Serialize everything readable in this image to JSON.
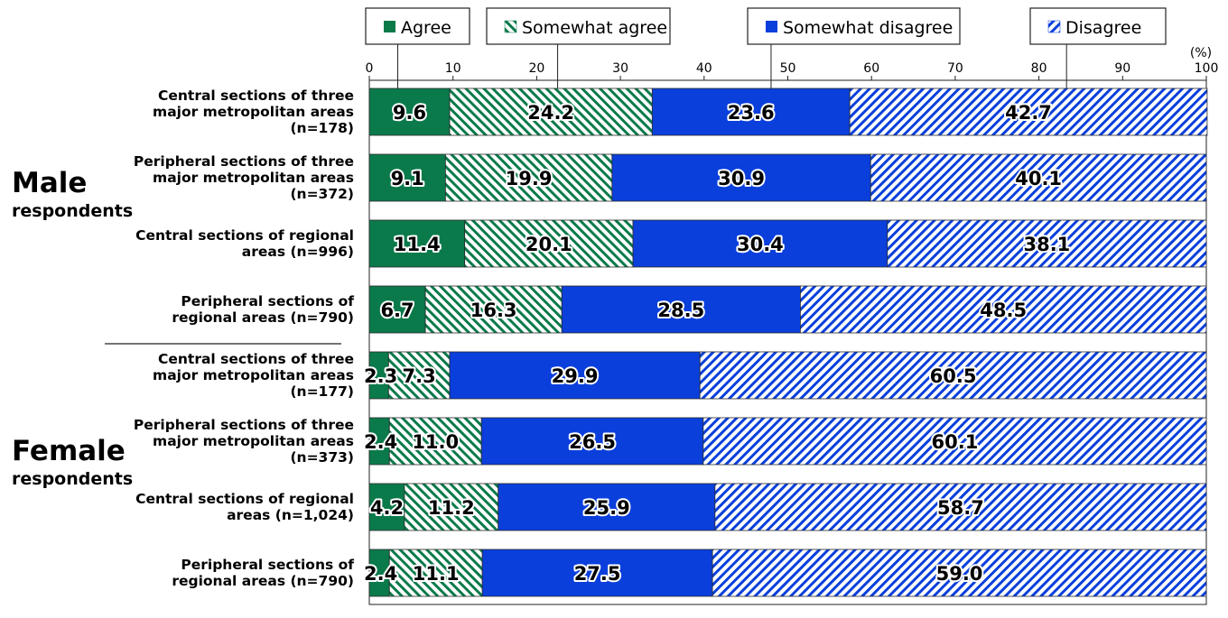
{
  "chart_data": {
    "type": "bar",
    "orientation": "horizontal",
    "stacked": true,
    "unit_label": "(%)",
    "xlim": [
      0,
      100
    ],
    "x_ticks": [
      0,
      10,
      20,
      30,
      40,
      50,
      60,
      70,
      80,
      90,
      100
    ],
    "groups": [
      {
        "title": "Male",
        "subtitle": "respondents"
      },
      {
        "title": "Female",
        "subtitle": "respondents"
      }
    ],
    "categories": [
      [
        "Central sections of three",
        "major metropolitan areas",
        "(n=178)"
      ],
      [
        "Peripheral sections of three",
        "major metropolitan areas",
        "(n=372)"
      ],
      [
        "Central sections of regional",
        "areas (n=996)"
      ],
      [
        "Peripheral sections of",
        "regional areas (n=790)"
      ],
      [
        "Central sections of three",
        "major metropolitan areas",
        "(n=177)"
      ],
      [
        "Peripheral sections of three",
        "major metropolitan areas",
        "(n=373)"
      ],
      [
        "Central sections of regional",
        "areas (n=1,024)"
      ],
      [
        "Peripheral sections of",
        "regional areas (n=790)"
      ]
    ],
    "series": [
      {
        "name": "Agree",
        "color": "#0b7a4b",
        "pattern": "solid",
        "values": [
          9.6,
          9.1,
          11.4,
          6.7,
          2.3,
          2.4,
          4.2,
          2.4
        ]
      },
      {
        "name": "Somewhat agree",
        "color": "#0b7a4b",
        "pattern": "hatch-back",
        "values": [
          24.2,
          19.9,
          20.1,
          16.3,
          7.3,
          11.0,
          11.2,
          11.1
        ]
      },
      {
        "name": "Somewhat disagree",
        "color": "#0a3fdc",
        "pattern": "solid",
        "values": [
          23.6,
          30.9,
          30.4,
          28.5,
          29.9,
          26.5,
          25.9,
          27.5
        ]
      },
      {
        "name": "Disagree",
        "color": "#0a3fdc",
        "pattern": "hatch-forward",
        "values": [
          42.7,
          40.1,
          38.1,
          48.5,
          60.5,
          60.1,
          58.7,
          59.0
        ]
      }
    ]
  }
}
